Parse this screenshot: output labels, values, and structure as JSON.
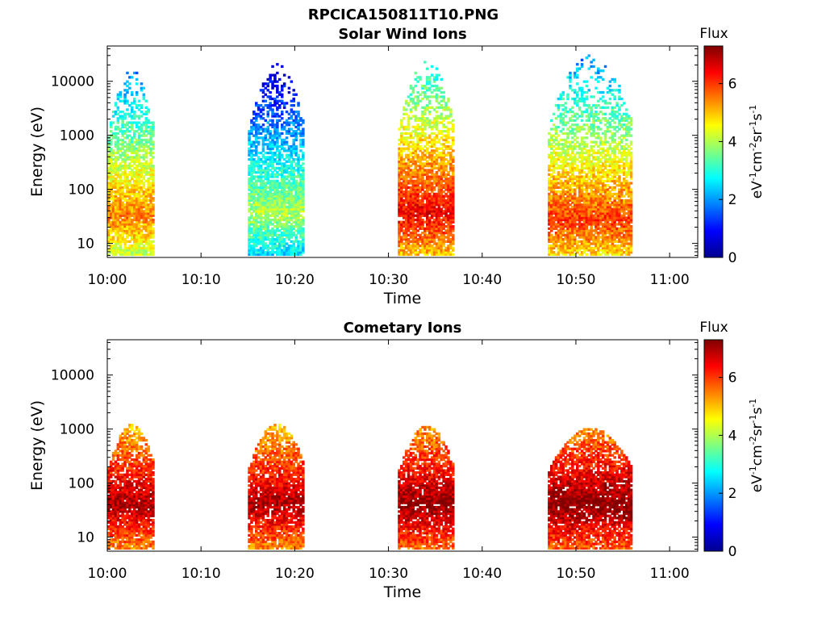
{
  "figure_title": "RPCICA150811T10.PNG",
  "colorbar_scale": {
    "label": "Flux",
    "ticks": [
      0,
      2,
      4,
      6
    ],
    "range": [
      0,
      7.3
    ]
  },
  "chart_data": [
    {
      "type": "heatmap",
      "title": "Solar Wind Ions",
      "xlabel": "Time",
      "ylabel": "Energy (eV)",
      "y_scale": "log",
      "ylim": [
        5.5,
        45000
      ],
      "xlim": [
        "10:00",
        "11:03"
      ],
      "x_ticks": [
        "10:00",
        "10:10",
        "10:20",
        "10:30",
        "10:40",
        "10:50",
        "11:00"
      ],
      "y_ticks": [
        10,
        100,
        1000,
        10000
      ],
      "y_tick_labels": [
        "10",
        "100",
        "1000",
        "10000"
      ],
      "colorbar": "Flux",
      "flux_units": "eV-1 cm-2 sr-1 s-1",
      "bursts": [
        {
          "start": "10:00",
          "end": "10:05",
          "low_eV": 6,
          "high_eV": 16000,
          "peak_eV": 30,
          "peak_flux": 5.5
        },
        {
          "start": "10:15",
          "end": "10:21",
          "low_eV": 6,
          "high_eV": 20000,
          "peak_eV": 35,
          "peak_flux": 4.0
        },
        {
          "start": "10:31",
          "end": "10:37",
          "low_eV": 6,
          "high_eV": 25000,
          "peak_eV": 35,
          "peak_flux": 6.5
        },
        {
          "start": "10:47",
          "end": "10:56",
          "low_eV": 6,
          "high_eV": 30000,
          "peak_eV": 25,
          "peak_flux": 6.0
        }
      ]
    },
    {
      "type": "heatmap",
      "title": "Cometary Ions",
      "xlabel": "Time",
      "ylabel": "Energy (eV)",
      "y_scale": "log",
      "ylim": [
        5.5,
        45000
      ],
      "xlim": [
        "10:00",
        "11:03"
      ],
      "x_ticks": [
        "10:00",
        "10:10",
        "10:20",
        "10:30",
        "10:40",
        "10:50",
        "11:00"
      ],
      "y_ticks": [
        10,
        100,
        1000,
        10000
      ],
      "y_tick_labels": [
        "10",
        "100",
        "1000",
        "10000"
      ],
      "colorbar": "Flux",
      "flux_units": "eV-1 cm-2 sr-1 s-1",
      "bursts": [
        {
          "start": "10:00",
          "end": "10:05",
          "low_eV": 6,
          "high_eV": 1200,
          "peak_eV": 38,
          "peak_flux": 7.0
        },
        {
          "start": "10:15",
          "end": "10:21",
          "low_eV": 6,
          "high_eV": 1200,
          "peak_eV": 38,
          "peak_flux": 7.0
        },
        {
          "start": "10:31",
          "end": "10:37",
          "low_eV": 6,
          "high_eV": 1100,
          "peak_eV": 38,
          "peak_flux": 7.2
        },
        {
          "start": "10:47",
          "end": "10:56",
          "low_eV": 6,
          "high_eV": 1000,
          "peak_eV": 38,
          "peak_flux": 7.3
        }
      ]
    }
  ]
}
